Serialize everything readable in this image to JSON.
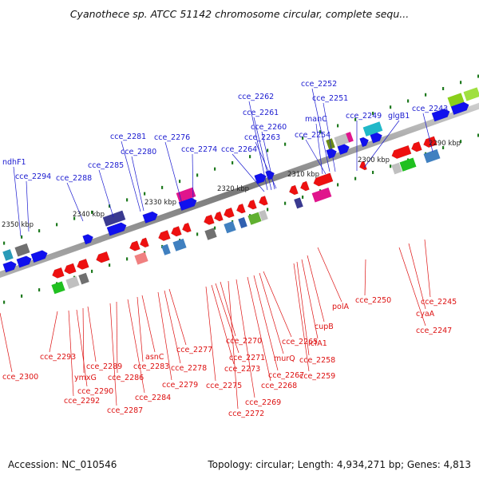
{
  "title": "Cyanothece sp. ATCC 51142 chromosome circular, complete sequ...",
  "accession": "Accession: NC_010546",
  "summary": "Topology: circular; Length: 4,934,271 bp; Genes: 4,813",
  "colors": {
    "top_label": "#1a1ad0",
    "bottom_label": "#dd1111",
    "backbone": "#8a8a8a",
    "tick": "#1f7a1f"
  },
  "kbp_labels": [
    "2290 kbp",
    "2300 kbp",
    "2310 kbp",
    "2320 kbp",
    "2330 kbp",
    "2340 kbp",
    "2350 kbp"
  ],
  "top_genes": [
    "cce_2252",
    "cce_2251",
    "cce_2262",
    "cce_2261",
    "cce_2260",
    "cce_2263",
    "manC",
    "cce_2254",
    "cce_2249",
    "glgB1",
    "cce_2243",
    "cce_2281",
    "cce_2280",
    "cce_2276",
    "cce_2274",
    "cce_2264",
    "cce_2285",
    "cce_2288",
    "cce_2294",
    "ndhF1"
  ],
  "bottom_genes": [
    "polA",
    "cce_2250",
    "cce_2245",
    "cyaA",
    "cce_2247",
    "cupB",
    "icfA1",
    "cce_2258",
    "cce_2259",
    "cce_2265",
    "murQ",
    "cce_2267",
    "cce_2268",
    "cce_2269",
    "cce_2272",
    "cce_2270",
    "cce_2271",
    "cce_2273",
    "cce_2275",
    "cce_2277",
    "cce_2278",
    "cce_2279",
    "asnC",
    "cce_2283",
    "cce_2284",
    "cce_2286",
    "cce_2287",
    "cce_2289",
    "ymxG",
    "cce_2290",
    "cce_2292",
    "cce_2293",
    "cce_2300"
  ]
}
